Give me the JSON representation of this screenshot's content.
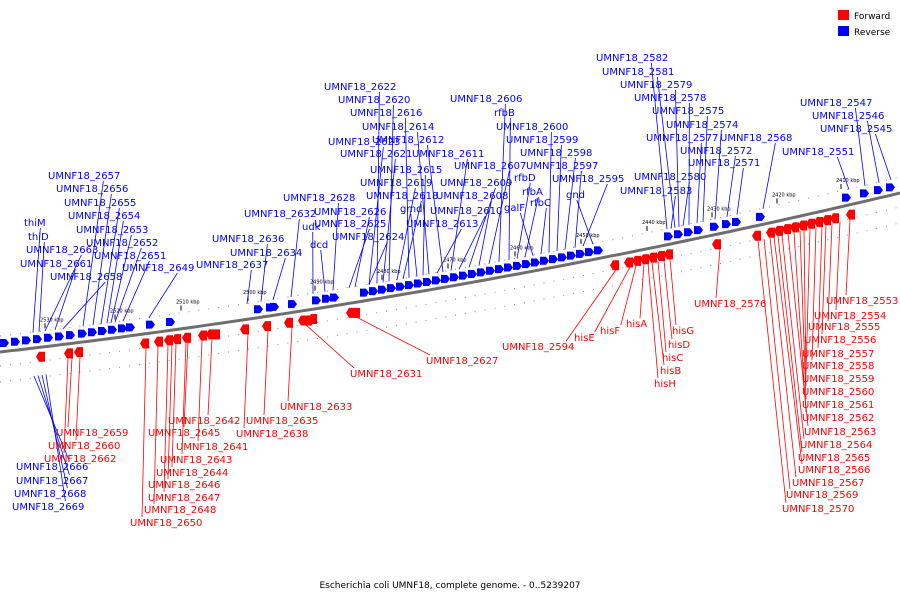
{
  "caption": "Escherichia coli UMNF18, complete genome. - 0..5239207",
  "legend": {
    "forward": {
      "label": "Forward",
      "color": "#ff0000"
    },
    "reverse": {
      "label": "Reverse",
      "color": "#0000ff"
    }
  },
  "ticks": [
    "2530 kbp",
    "2520 kbp",
    "2510 kbp",
    "2500 kbp",
    "2490 kbp",
    "2480 kbp",
    "2470 kbp",
    "2460 kbp",
    "2450 kbp",
    "2440 kbp",
    "2430 kbp",
    "2420 kbp",
    "2410 kbp"
  ],
  "reverse_labels": [
    "thiM",
    "thiD",
    "UMNF18_2663",
    "UMNF18_2661",
    "UMNF18_2658",
    "UMNF18_2657",
    "UMNF18_2656",
    "UMNF18_2655",
    "UMNF18_2654",
    "UMNF18_2653",
    "UMNF18_2652",
    "UMNF18_2651",
    "UMNF18_2649",
    "UMNF18_2637",
    "UMNF18_2636",
    "UMNF18_2634",
    "UMNF18_2632",
    "udk",
    "dcd",
    "UMNF18_2628",
    "UMNF18_2626",
    "UMNF18_2625",
    "UMNF18_2624",
    "UMNF18_2623",
    "UMNF18_2622",
    "UMNF18_2621",
    "UMNF18_2620",
    "UMNF18_2619",
    "UMNF18_2618",
    "UMNF18_2616",
    "gmd",
    "UMNF18_2615",
    "UMNF18_2614",
    "UMNF18_2613",
    "UMNF18_2612",
    "UMNF18_2611",
    "UMNF18_2610",
    "UMNF18_2609",
    "UMNF18_2608",
    "UMNF18_2607",
    "UMNF18_2606",
    "rfbB",
    "rfbD",
    "rfbA",
    "galF",
    "rfbC",
    "UMNF18_2600",
    "UMNF18_2599",
    "UMNF18_2598",
    "UMNF18_2597",
    "UMNF18_2595",
    "gnd",
    "UMNF18_2583",
    "UMNF18_2582",
    "UMNF18_2581",
    "UMNF18_2580",
    "UMNF18_2579",
    "UMNF18_2578",
    "UMNF18_2577",
    "UMNF18_2575",
    "UMNF18_2574",
    "UMNF18_2572",
    "UMNF18_2571",
    "UMNF18_2568",
    "UMNF18_2551",
    "UMNF18_2547",
    "UMNF18_2546",
    "UMNF18_2545",
    "UMNF18_2666",
    "UMNF18_2667",
    "UMNF18_2668",
    "UMNF18_2669"
  ],
  "forward_labels": [
    "UMNF18_2659",
    "UMNF18_2660",
    "UMNF18_2662",
    "UMNF18_2642",
    "UMNF18_2645",
    "UMNF18_2641",
    "UMNF18_2643",
    "UMNF18_2644",
    "UMNF18_2646",
    "UMNF18_2647",
    "UMNF18_2648",
    "UMNF18_2650",
    "UMNF18_2638",
    "UMNF18_2635",
    "UMNF18_2633",
    "UMNF18_2631",
    "UMNF18_2627",
    "UMNF18_2594",
    "hisE",
    "hisF",
    "hisA",
    "hisG",
    "hisD",
    "hisC",
    "hisB",
    "hisH",
    "UMNF18_2576",
    "UMNF18_2553",
    "UMNF18_2554",
    "UMNF18_2555",
    "UMNF18_2556",
    "UMNF18_2557",
    "UMNF18_2558",
    "UMNF18_2559",
    "UMNF18_2560",
    "UMNF18_2561",
    "UMNF18_2562",
    "UMNF18_2563",
    "UMNF18_2564",
    "UMNF18_2565",
    "UMNF18_2566",
    "UMNF18_2567",
    "UMNF18_2569",
    "UMNF18_2570"
  ]
}
